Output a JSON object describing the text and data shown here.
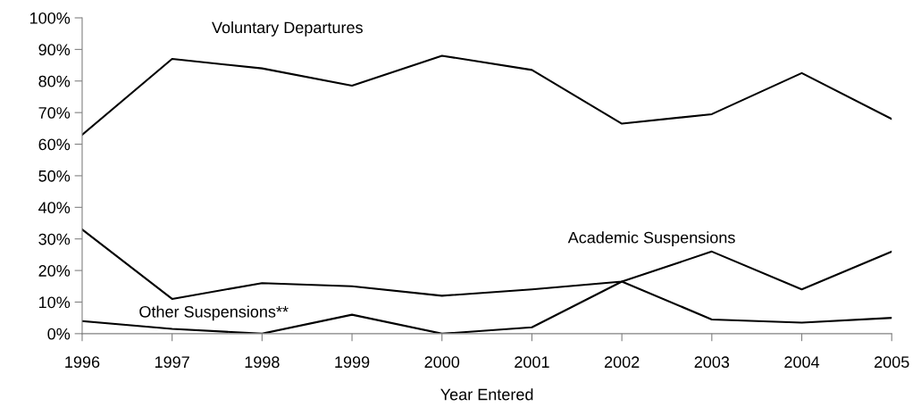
{
  "chart_data": {
    "type": "line",
    "xlabel": "Year Entered",
    "categories": [
      "1996",
      "1997",
      "1998",
      "1999",
      "2000",
      "2001",
      "2002",
      "2003",
      "2004",
      "2005"
    ],
    "series": [
      {
        "name": "Voluntary Departures",
        "color": "#000000",
        "values": [
          63,
          87,
          84,
          78.5,
          88,
          83.5,
          66.5,
          69.5,
          82.5,
          68
        ]
      },
      {
        "name": "Academic Suspensions",
        "color": "#000000",
        "values": [
          33,
          11,
          16,
          15,
          12,
          14,
          16.5,
          26,
          14,
          26
        ]
      },
      {
        "name": "Other Suspensions**",
        "color": "#000000",
        "values": [
          4,
          1.5,
          0,
          6,
          0,
          2,
          16.5,
          4.5,
          3.5,
          5
        ]
      }
    ],
    "ylim": [
      0,
      100
    ],
    "yticks": [
      {
        "value": 0,
        "label": "0%"
      },
      {
        "value": 10,
        "label": "10%"
      },
      {
        "value": 20,
        "label": "20%"
      },
      {
        "value": 30,
        "label": "30%"
      },
      {
        "value": 40,
        "label": "40%"
      },
      {
        "value": 50,
        "label": "50%"
      },
      {
        "value": 60,
        "label": "60%"
      },
      {
        "value": 70,
        "label": "70%"
      },
      {
        "value": 80,
        "label": "80%"
      },
      {
        "value": 90,
        "label": "90%"
      },
      {
        "value": 100,
        "label": "100%"
      }
    ],
    "grid": false,
    "legend": false,
    "marker": "none",
    "line_style": "solid"
  }
}
